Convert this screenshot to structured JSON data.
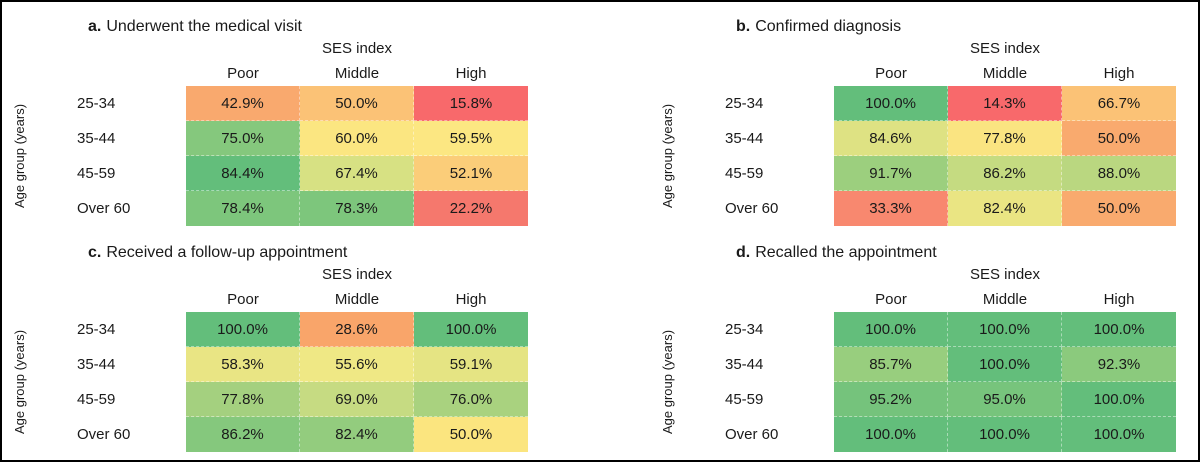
{
  "figure": {
    "background": "#FFFFFF",
    "border_color": "#000000",
    "y_axis_label": "Age group (years)",
    "ses_header": "SES index",
    "columns": [
      "Poor",
      "Middle",
      "High"
    ],
    "rows": [
      "25-34",
      "35-44",
      "45-59",
      "Over 60"
    ],
    "color_scale": {
      "low": "#F8696B",
      "mid": "#FFEB84",
      "high": "#63BE7B"
    }
  },
  "chart_data": [
    {
      "type": "heatmap",
      "panel_letter": "a.",
      "title": "Underwent the medical visit",
      "legend_header": "SES index",
      "columns": [
        "Poor",
        "Middle",
        "High"
      ],
      "rows": [
        "25-34",
        "35-44",
        "45-59",
        "Over 60"
      ],
      "ylabel": "Age group (years)",
      "values": [
        [
          42.9,
          50.0,
          15.8
        ],
        [
          75.0,
          60.0,
          59.5
        ],
        [
          84.4,
          67.4,
          52.1
        ],
        [
          78.4,
          78.3,
          22.2
        ]
      ],
      "labels": [
        [
          "42.9%",
          "50.0%",
          "15.8%"
        ],
        [
          "75.0%",
          "60.0%",
          "59.5%"
        ],
        [
          "84.4%",
          "67.4%",
          "52.1%"
        ],
        [
          "78.4%",
          "78.3%",
          "22.2%"
        ]
      ],
      "cell_colors": [
        [
          "#F9A96E",
          "#FBC276",
          "#F8696B"
        ],
        [
          "#85C87D",
          "#FBE681",
          "#FCE782"
        ],
        [
          "#63BE7B",
          "#D7E183",
          "#FBCD79"
        ],
        [
          "#7DC67C",
          "#7DC67C",
          "#F5786D"
        ]
      ]
    },
    {
      "type": "heatmap",
      "panel_letter": "b.",
      "title": "Confirmed diagnosis",
      "legend_header": "SES index",
      "columns": [
        "Poor",
        "Middle",
        "High"
      ],
      "rows": [
        "25-34",
        "35-44",
        "45-59",
        "Over 60"
      ],
      "ylabel": "Age group (years)",
      "values": [
        [
          100.0,
          14.3,
          66.7
        ],
        [
          84.6,
          77.8,
          50.0
        ],
        [
          91.7,
          86.2,
          88.0
        ],
        [
          33.3,
          82.4,
          50.0
        ]
      ],
      "labels": [
        [
          "100.0%",
          "14.3%",
          "66.7%"
        ],
        [
          "84.6%",
          "77.8%",
          "50.0%"
        ],
        [
          "91.7%",
          "86.2%",
          "88.0%"
        ],
        [
          "33.3%",
          "82.4%",
          "50.0%"
        ]
      ],
      "cell_colors": [
        [
          "#63BE7B",
          "#F8696B",
          "#FBC276"
        ],
        [
          "#DEE283",
          "#FAE481",
          "#F9AA6E"
        ],
        [
          "#9CCF7E",
          "#C5DB81",
          "#BAD780"
        ],
        [
          "#F8886F",
          "#EAE583",
          "#F9AA6E"
        ]
      ]
    },
    {
      "type": "heatmap",
      "panel_letter": "c.",
      "title": "Received a follow-up appointment",
      "legend_header": "SES index",
      "columns": [
        "Poor",
        "Middle",
        "High"
      ],
      "rows": [
        "25-34",
        "35-44",
        "45-59",
        "Over 60"
      ],
      "ylabel": "Age group (years)",
      "values": [
        [
          100.0,
          28.6,
          100.0
        ],
        [
          58.3,
          55.6,
          59.1
        ],
        [
          77.8,
          69.0,
          76.0
        ],
        [
          86.2,
          82.4,
          50.0
        ]
      ],
      "labels": [
        [
          "100.0%",
          "28.6%",
          "100.0%"
        ],
        [
          "58.3%",
          "55.6%",
          "59.1%"
        ],
        [
          "77.8%",
          "69.0%",
          "76.0%"
        ],
        [
          "86.2%",
          "82.4%",
          "50.0%"
        ]
      ],
      "cell_colors": [
        [
          "#63BE7B",
          "#F9A56A",
          "#63BE7B"
        ],
        [
          "#E9E584",
          "#EFE885",
          "#E5E483"
        ],
        [
          "#A4D07F",
          "#C6DB82",
          "#A9D27F"
        ],
        [
          "#85C87D",
          "#93CC7E",
          "#FBE57F"
        ]
      ]
    },
    {
      "type": "heatmap",
      "panel_letter": "d.",
      "title": "Recalled the appointment",
      "legend_header": "SES index",
      "columns": [
        "Poor",
        "Middle",
        "High"
      ],
      "rows": [
        "25-34",
        "35-44",
        "45-59",
        "Over 60"
      ],
      "ylabel": "Age group (years)",
      "values": [
        [
          100.0,
          100.0,
          100.0
        ],
        [
          85.7,
          100.0,
          92.3
        ],
        [
          95.2,
          95.0,
          100.0
        ],
        [
          100.0,
          100.0,
          100.0
        ]
      ],
      "labels": [
        [
          "100.0%",
          "100.0%",
          "100.0%"
        ],
        [
          "85.7%",
          "100.0%",
          "92.3%"
        ],
        [
          "95.2%",
          "95.0%",
          "100.0%"
        ],
        [
          "100.0%",
          "100.0%",
          "100.0%"
        ]
      ],
      "cell_colors": [
        [
          "#63BE7B",
          "#63BE7B",
          "#63BE7B"
        ],
        [
          "#98CE7E",
          "#63BE7B",
          "#8BCA7D"
        ],
        [
          "#75C37C",
          "#77C47C",
          "#63BE7B"
        ],
        [
          "#63BE7B",
          "#63BE7B",
          "#63BE7B"
        ]
      ]
    }
  ]
}
